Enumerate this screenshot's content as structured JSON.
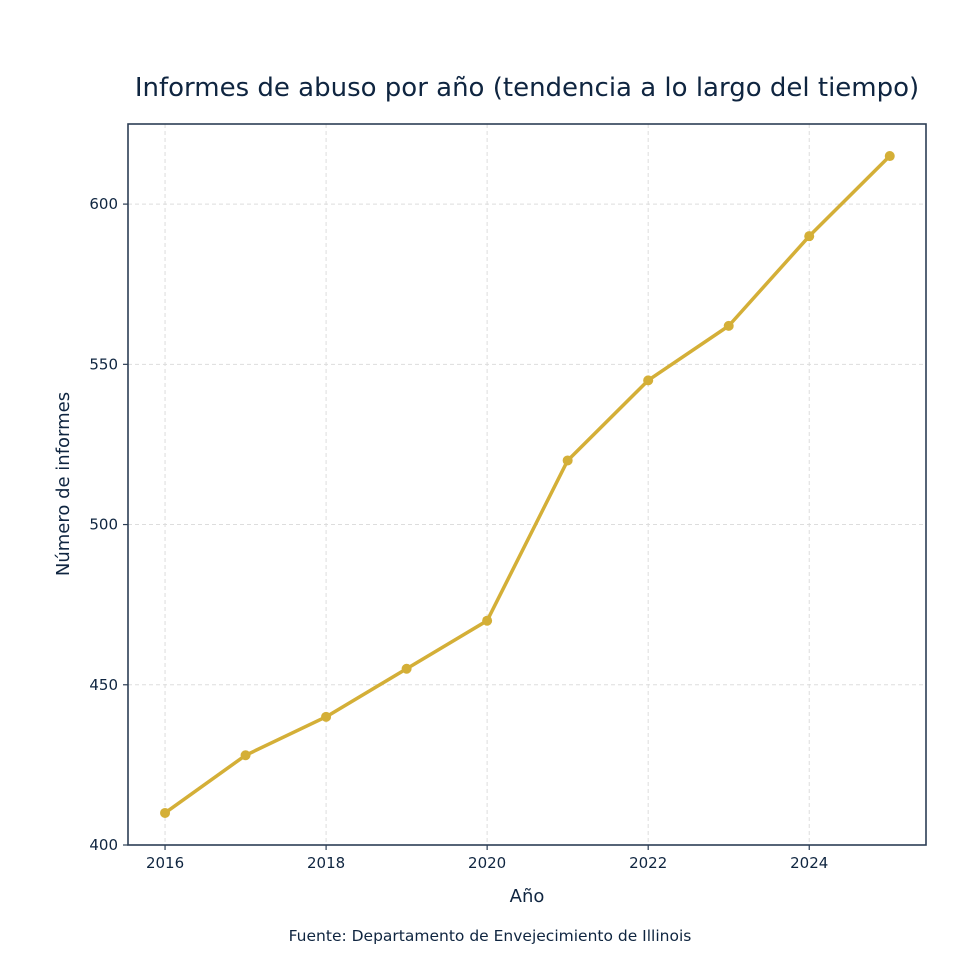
{
  "chart_data": {
    "type": "line",
    "title": "Informes de abuso por año (tendencia a lo largo del tiempo)",
    "xlabel": "Año",
    "ylabel": "Número de informes",
    "source": "Fuente: Departamento de Envejecimiento de Illinois",
    "x": [
      2016,
      2017,
      2018,
      2019,
      2020,
      2021,
      2022,
      2023,
      2024,
      2025
    ],
    "series": [
      {
        "name": "Informes de abuso",
        "values": [
          410,
          428,
          440,
          455,
          470,
          520,
          545,
          562,
          590,
          615
        ],
        "color": "#d4af37"
      }
    ],
    "xticks": [
      2016,
      2018,
      2020,
      2022,
      2024
    ],
    "yticks": [
      400,
      450,
      500,
      550,
      600
    ],
    "xlim": [
      2015.54,
      2025.45
    ],
    "ylim": [
      400,
      625
    ],
    "grid": true,
    "legend": false
  },
  "colors": {
    "line": "#d4af37",
    "axis": "#2c3e55",
    "grid": "#dddddd",
    "text": "#0f2540"
  }
}
